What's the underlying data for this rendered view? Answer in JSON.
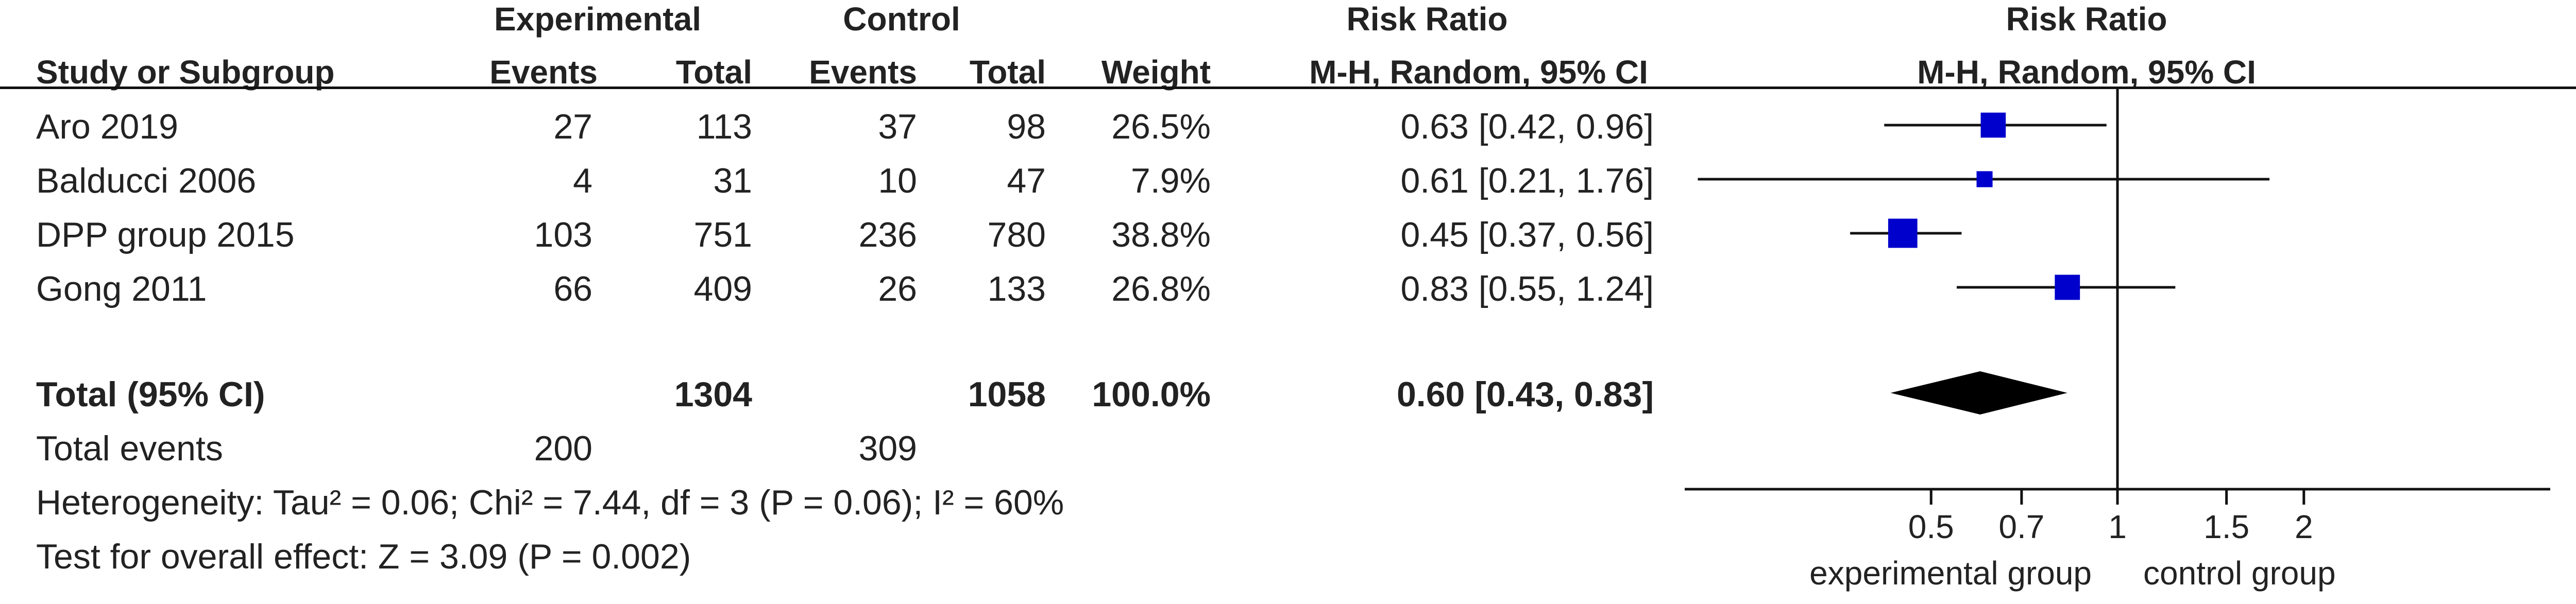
{
  "header": {
    "group_exp": "Experimental",
    "group_ctrl": "Control",
    "risk_ratio": "Risk Ratio",
    "col_study": "Study or Subgroup",
    "col_events_exp": "Events",
    "col_total_exp": "Total",
    "col_events_ctrl": "Events",
    "col_total_ctrl": "Total",
    "col_weight": "Weight",
    "col_method": "M-H, Random, 95% CI",
    "plot_title": "Risk Ratio",
    "plot_method": "M-H, Random, 95% CI"
  },
  "studies": [
    {
      "name": "Aro 2019",
      "exp_events": "27",
      "exp_total": "113",
      "ctrl_events": "37",
      "ctrl_total": "98",
      "weight": "26.5%",
      "ci_text": "0.63 [0.42, 0.96]"
    },
    {
      "name": "Balducci 2006",
      "exp_events": "4",
      "exp_total": "31",
      "ctrl_events": "10",
      "ctrl_total": "47",
      "weight": "7.9%",
      "ci_text": "0.61 [0.21, 1.76]"
    },
    {
      "name": "DPP group 2015",
      "exp_events": "103",
      "exp_total": "751",
      "ctrl_events": "236",
      "ctrl_total": "780",
      "weight": "38.8%",
      "ci_text": "0.45 [0.37, 0.56]"
    },
    {
      "name": "Gong 2011",
      "exp_events": "66",
      "exp_total": "409",
      "ctrl_events": "26",
      "ctrl_total": "133",
      "weight": "26.8%",
      "ci_text": "0.83 [0.55, 1.24]"
    }
  ],
  "total": {
    "label": "Total (95% CI)",
    "exp_total": "1304",
    "ctrl_total": "1058",
    "weight": "100.0%",
    "ci_text": "0.60 [0.43, 0.83]"
  },
  "total_events": {
    "label": "Total events",
    "exp": "200",
    "ctrl": "309"
  },
  "heterogeneity": "Heterogeneity: Tau² = 0.06; Chi² = 7.44, df = 3 (P = 0.06); I² = 60%",
  "overall_effect": "Test for overall effect: Z = 3.09 (P = 0.002)",
  "chart_data": {
    "type": "forest",
    "scale": "log",
    "xlim": [
      0.2,
      5
    ],
    "xticks": [
      0.5,
      0.7,
      1,
      1.5,
      2
    ],
    "tick_labels": [
      "0.5",
      "0.7",
      "1",
      "1.5",
      "2"
    ],
    "favours_left": "experimental group",
    "favours_right": "control group",
    "studies": [
      {
        "name": "Aro 2019",
        "rr": 0.63,
        "lo": 0.42,
        "hi": 0.96,
        "weight": 26.5
      },
      {
        "name": "Balducci 2006",
        "rr": 0.61,
        "lo": 0.21,
        "hi": 1.76,
        "weight": 7.9
      },
      {
        "name": "DPP group 2015",
        "rr": 0.45,
        "lo": 0.37,
        "hi": 0.56,
        "weight": 38.8
      },
      {
        "name": "Gong 2011",
        "rr": 0.83,
        "lo": 0.55,
        "hi": 1.24,
        "weight": 26.8
      }
    ],
    "pooled": {
      "rr": 0.6,
      "lo": 0.43,
      "hi": 0.83
    },
    "marker_color": "#0000cc",
    "diamond_color": "#000000"
  }
}
